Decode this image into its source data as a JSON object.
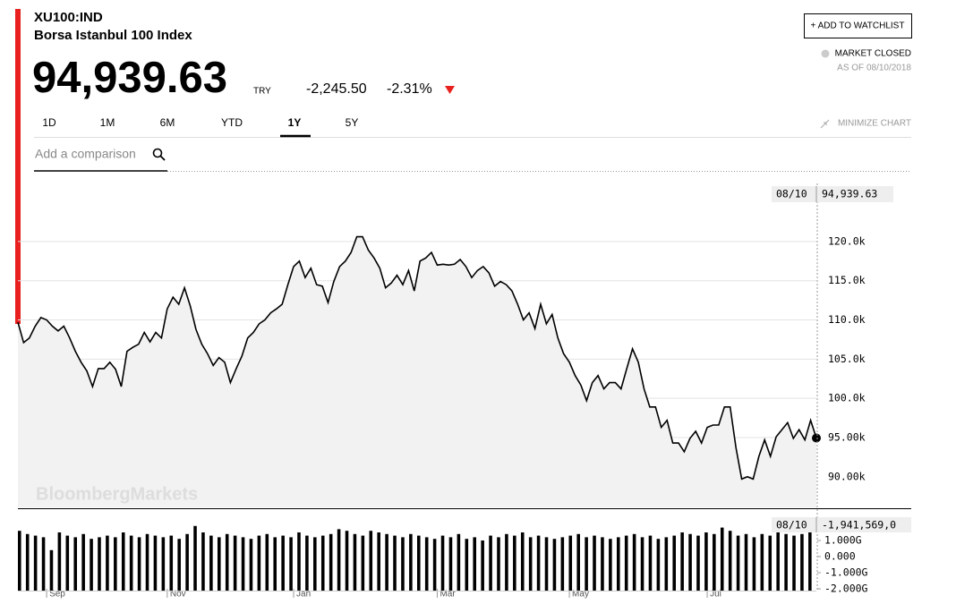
{
  "header": {
    "symbol": "XU100:IND",
    "name": "Borsa Istanbul 100 Index",
    "price": "94,939.63",
    "currency": "TRY",
    "change": "-2,245.50",
    "change_pct": "-2.31%",
    "status": "MARKET CLOSED",
    "as_of": "AS OF 08/10/2018",
    "watchlist": "+ ADD TO WATCHLIST"
  },
  "ranges": [
    "1D",
    "1M",
    "6M",
    "YTD",
    "1Y",
    "5Y"
  ],
  "selected_range": 4,
  "minimize": "MINIMIZE CHART",
  "comparison_placeholder": "Add a comparison",
  "watermark": "BloombergMarkets",
  "chart_data": [
    {
      "type": "line",
      "color": "#000000",
      "area_color": "#f2f2f2",
      "grid": true,
      "values": [
        109700,
        107100,
        107700,
        109200,
        110300,
        110000,
        109200,
        108600,
        109200,
        107700,
        106000,
        104600,
        103500,
        101500,
        103800,
        103800,
        104600,
        103700,
        101500,
        106000,
        106500,
        106900,
        108400,
        107200,
        108400,
        107700,
        111400,
        112900,
        112000,
        114100,
        111800,
        108800,
        106900,
        105700,
        104200,
        105200,
        104600,
        102000,
        103800,
        105400,
        107700,
        108400,
        109500,
        110000,
        110900,
        111400,
        112000,
        114500,
        116800,
        117500,
        115400,
        116600,
        114500,
        114300,
        112200,
        114900,
        116800,
        117500,
        118600,
        120600,
        120600,
        118900,
        117900,
        116600,
        114100,
        114700,
        115700,
        114500,
        116300,
        113700,
        117500,
        117900,
        118600,
        117000,
        117100,
        117000,
        117100,
        117700,
        116800,
        115400,
        116300,
        116800,
        116000,
        114300,
        114900,
        114500,
        113700,
        112000,
        110000,
        110900,
        108900,
        112000,
        109500,
        110700,
        107700,
        105700,
        104600,
        102900,
        101700,
        99700,
        102000,
        102900,
        101200,
        102000,
        102000,
        101200,
        103800,
        106300,
        104600,
        101200,
        98900,
        98900,
        96300,
        97200,
        94300,
        94300,
        93200,
        94900,
        95800,
        94300,
        96300,
        96600,
        96600,
        98900,
        98900,
        93700,
        89700,
        90000,
        89700,
        92600,
        94700,
        92600,
        95100,
        96000,
        96900,
        94900,
        96000,
        94700,
        97200,
        94939.63
      ],
      "xticks": [
        {
          "value": 5,
          "label": "Sep"
        },
        {
          "value": 26,
          "label": "Nov"
        },
        {
          "value": 48,
          "label": "Jan"
        },
        {
          "value": 73,
          "label": "Mar"
        },
        {
          "value": 96,
          "label": "May"
        },
        {
          "value": 120,
          "label": "Jul"
        }
      ],
      "ylim": [
        86100,
        127400
      ],
      "yticks": [
        {
          "value": 90000,
          "label": "90.00k"
        },
        {
          "value": 95000,
          "label": "95.00k"
        },
        {
          "value": 100000,
          "label": "100.0k"
        },
        {
          "value": 105000,
          "label": "105.0k"
        },
        {
          "value": 110000,
          "label": "110.0k"
        },
        {
          "value": 115000,
          "label": "115.0k"
        },
        {
          "value": 120000,
          "label": "120.0k"
        }
      ],
      "marker_date": "08/10",
      "marker_label": "94,939.63"
    },
    {
      "type": "bar",
      "color": "#000000",
      "values": [
        1600000000.0,
        1400000000.0,
        1300000000.0,
        1200000000.0,
        400000000.0,
        1500000000.0,
        1300000000.0,
        1200000000.0,
        1400000000.0,
        1100000000.0,
        1200000000.0,
        1300000000.0,
        1200000000.0,
        1500000000.0,
        1300000000.0,
        1200000000.0,
        1400000000.0,
        1300000000.0,
        1200000000.0,
        1300000000.0,
        1100000000.0,
        1400000000.0,
        1900000000.0,
        1500000000.0,
        1300000000.0,
        1200000000.0,
        1400000000.0,
        1300000000.0,
        1200000000.0,
        1100000000.0,
        1300000000.0,
        1400000000.0,
        1200000000.0,
        1300000000.0,
        1200000000.0,
        1500000000.0,
        1300000000.0,
        1200000000.0,
        1300000000.0,
        1400000000.0,
        1700000000.0,
        1600000000.0,
        1400000000.0,
        1300000000.0,
        1600000000.0,
        1500000000.0,
        1400000000.0,
        1300000000.0,
        1200000000.0,
        1400000000.0,
        1300000000.0,
        1200000000.0,
        1100000000.0,
        1300000000.0,
        1200000000.0,
        1400000000.0,
        1100000000.0,
        1200000000.0,
        1000000000.0,
        1300000000.0,
        1200000000.0,
        1400000000.0,
        1300000000.0,
        1500000000.0,
        1200000000.0,
        1300000000.0,
        1200000000.0,
        1100000000.0,
        1200000000.0,
        1300000000.0,
        1400000000.0,
        1200000000.0,
        1300000000.0,
        1200000000.0,
        1100000000.0,
        1200000000.0,
        1300000000.0,
        1400000000.0,
        1200000000.0,
        1300000000.0,
        1100000000.0,
        1200000000.0,
        1300000000.0,
        1500000000.0,
        1400000000.0,
        1300000000.0,
        1500000000.0,
        1400000000.0,
        1800000000.0,
        1600000000.0,
        1300000000.0,
        1400000000.0,
        1200000000.0,
        1400000000.0,
        1300000000.0,
        1500000000.0,
        1400000000.0,
        1300000000.0,
        1400000000.0,
        1500000000.0
      ],
      "ylim": [
        -2110000000,
        2610000000
      ],
      "yticks": [
        {
          "value": -2000000000,
          "label": "-2.000G"
        },
        {
          "value": -1000000000,
          "label": "-1.000G"
        },
        {
          "value": 0,
          "label": "0.000"
        },
        {
          "value": 1000000000,
          "label": "1.000G"
        }
      ],
      "marker_date": "08/10",
      "marker_label": "-1,941,569,0"
    }
  ]
}
